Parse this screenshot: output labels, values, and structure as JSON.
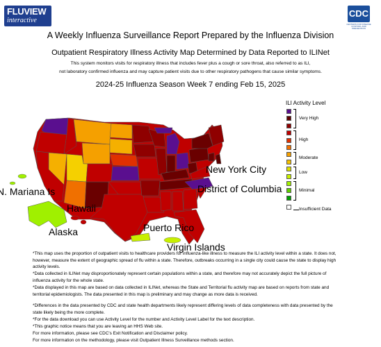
{
  "header": {
    "logo_left_line1": "FLUVIEW",
    "logo_left_line2": "interactive",
    "logo_right": "CDC",
    "logo_right_sub": "CENTERS FOR DISEASE CONTROL AND PREVENTION"
  },
  "titles": {
    "main": "A Weekly Influenza Surveillance Report Prepared by the Influenza Division",
    "subtitle": "Outpatient Respiratory Illness Activity Map Determined by Data Reported to ILINet",
    "desc_line1": "This system monitors visits for respiratory illness that includes fever plus a cough or sore throat, also referred to as ILI,",
    "desc_line2": "not laboratory confirmed influenza and may capture patient visits due to other respiratory pathogens that cause similar symptoms.",
    "season": "2024-25 Influenza Season Week 7 ending Feb 15, 2025"
  },
  "legend": {
    "title": "ILI Activity Level",
    "swatches": [
      "#5a0f8f",
      "#5c0000",
      "#8f0000",
      "#c00000",
      "#e03000",
      "#f07000",
      "#f5a000",
      "#f5c000",
      "#dde000",
      "#c8f000",
      "#a0f000",
      "#60d000",
      "#00a000",
      "#ffffff"
    ],
    "groups": [
      {
        "label": "Very High"
      },
      {
        "label": "High"
      },
      {
        "label": "Moderate"
      },
      {
        "label": "Low"
      },
      {
        "label": "Minimal"
      },
      {
        "label": "Insufficient Data"
      }
    ]
  },
  "map": {
    "labels": {
      "new_york_city": "New York City",
      "district_of_columbia": "District of Columbia",
      "n_mariana": "N. Mariana Is",
      "hawaii": "Hawaii",
      "alaska": "Alaska",
      "puerto_rico": "Puerto Rico",
      "virgin_islands": "Virgin Islands"
    },
    "colors": {
      "very_high_purple": "#5a0f8f",
      "very_high_dark": "#5c0000",
      "very_high_red": "#8f0000",
      "high_red": "#c00000",
      "high_orange": "#e03000",
      "moderate_orange": "#f5a000",
      "moderate_yellow": "#f5c000",
      "minimal_green": "#a0f000",
      "low_yellowgreen": "#c8e400"
    }
  },
  "notes": [
    "*This map uses the proportion of outpatient visits to healthcare providers for influenza-like illness to measure the ILI activity level within a state. It does not, however, measure the extent of geographic spread of flu within a state. Therefore, outbreaks occurring in a single city could cause the state to display high activity levels.",
    "*Data collected in ILINet may disproportionately represent certain populations within a state, and therefore may not accurately depict the full picture of influenza activity for the whole state.",
    "*Data displayed in this map are based on data collected in ILINet, whereas the State and Territorial flu activity map are based on reports from state and territorial epidemiologists. The data presented in this map is preliminary and may change as more data is received.",
    "*Differences in the data presented by CDC and state health departments likely represent differing levels of data completeness with data presented by the state likely being the more complete.",
    "*For the data download you can use Activity Level for the number and Activity Level Label for the text description.",
    "*This graphic notice means that you are leaving an HHS Web site.",
    "For more information, please see CDC's Exit Notification and Disclaimer policy.",
    "For more information on the methodology, please visit Outpatient Illness Surveillance methods section."
  ]
}
